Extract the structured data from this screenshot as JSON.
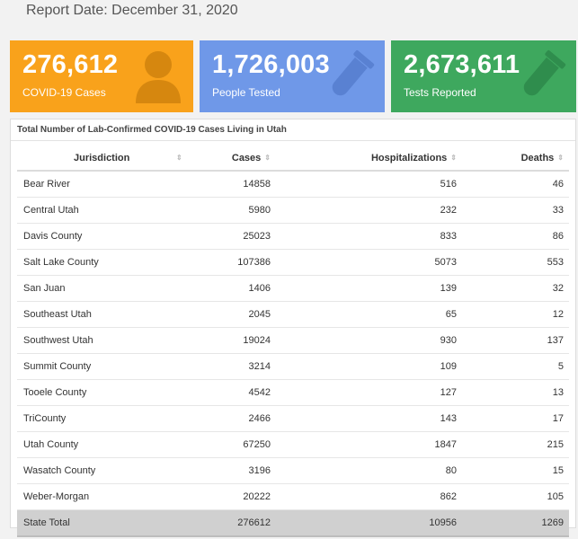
{
  "report": {
    "date_label": "Report Date: December 31, 2020"
  },
  "cards": {
    "cases": {
      "value": "276,612",
      "label": "COVID-19 Cases",
      "color": "#f9a21b",
      "icon": "person-icon"
    },
    "tested": {
      "value": "1,726,003",
      "label": "People Tested",
      "color": "#6f98e8",
      "icon": "test-tube-icon"
    },
    "reported": {
      "value": "2,673,611",
      "label": "Tests Reported",
      "color": "#3ea85e",
      "icon": "test-tube-icon"
    }
  },
  "table": {
    "title": "Total Number of Lab-Confirmed COVID-19 Cases Living in Utah",
    "headers": {
      "jurisdiction": "Jurisdiction",
      "cases": "Cases",
      "hospitalizations": "Hospitalizations",
      "deaths": "Deaths"
    },
    "sort_glyph": "⇕",
    "rows": [
      {
        "jurisdiction": "Bear River",
        "cases": "14858",
        "hospitalizations": "516",
        "deaths": "46"
      },
      {
        "jurisdiction": "Central Utah",
        "cases": "5980",
        "hospitalizations": "232",
        "deaths": "33"
      },
      {
        "jurisdiction": "Davis County",
        "cases": "25023",
        "hospitalizations": "833",
        "deaths": "86"
      },
      {
        "jurisdiction": "Salt Lake County",
        "cases": "107386",
        "hospitalizations": "5073",
        "deaths": "553"
      },
      {
        "jurisdiction": "San Juan",
        "cases": "1406",
        "hospitalizations": "139",
        "deaths": "32"
      },
      {
        "jurisdiction": "Southeast Utah",
        "cases": "2045",
        "hospitalizations": "65",
        "deaths": "12"
      },
      {
        "jurisdiction": "Southwest Utah",
        "cases": "19024",
        "hospitalizations": "930",
        "deaths": "137"
      },
      {
        "jurisdiction": "Summit County",
        "cases": "3214",
        "hospitalizations": "109",
        "deaths": "5"
      },
      {
        "jurisdiction": "Tooele County",
        "cases": "4542",
        "hospitalizations": "127",
        "deaths": "13"
      },
      {
        "jurisdiction": "TriCounty",
        "cases": "2466",
        "hospitalizations": "143",
        "deaths": "17"
      },
      {
        "jurisdiction": "Utah County",
        "cases": "67250",
        "hospitalizations": "1847",
        "deaths": "215"
      },
      {
        "jurisdiction": "Wasatch County",
        "cases": "3196",
        "hospitalizations": "80",
        "deaths": "15"
      },
      {
        "jurisdiction": "Weber-Morgan",
        "cases": "20222",
        "hospitalizations": "862",
        "deaths": "105"
      }
    ],
    "total": {
      "jurisdiction": "State Total",
      "cases": "276612",
      "hospitalizations": "10956",
      "deaths": "1269"
    }
  }
}
